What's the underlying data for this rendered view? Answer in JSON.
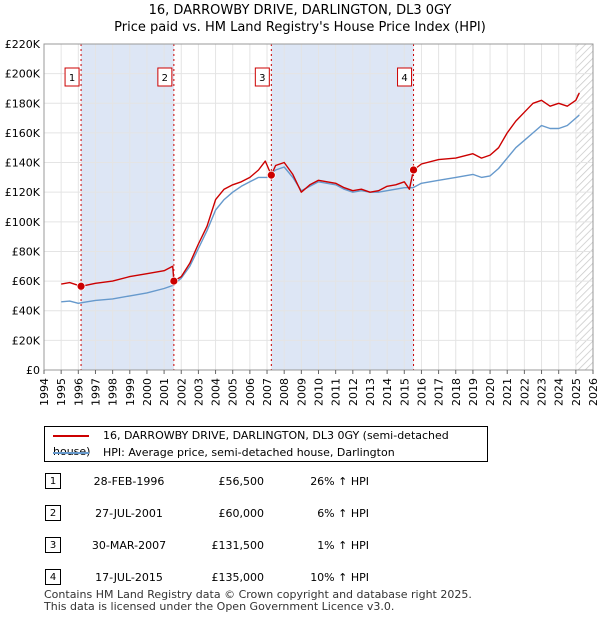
{
  "title_line1": "16, DARROWBY DRIVE, DARLINGTON, DL3 0GY",
  "title_line2": "Price paid vs. HM Land Registry's House Price Index (HPI)",
  "colors": {
    "property": "#cc0000",
    "hpi": "#6699cc",
    "shade": "#dde6f5",
    "marker": "#cc0000"
  },
  "chart_data": {
    "type": "line",
    "title": "16, DARROWBY DRIVE, DARLINGTON, DL3 0GY — Price paid vs. HM Land Registry's House Price Index (HPI)",
    "xlabel": "",
    "ylabel": "",
    "xlim": [
      1994,
      2026
    ],
    "ylim": [
      0,
      220000
    ],
    "x_ticks": [
      1994,
      1995,
      1996,
      1997,
      1998,
      1999,
      2000,
      2001,
      2002,
      2003,
      2004,
      2005,
      2006,
      2007,
      2008,
      2009,
      2010,
      2011,
      2012,
      2013,
      2014,
      2015,
      2016,
      2017,
      2018,
      2019,
      2020,
      2021,
      2022,
      2023,
      2024,
      2025,
      2026
    ],
    "y_ticks": [
      {
        "value": 0,
        "label": "£0"
      },
      {
        "value": 20000,
        "label": "£20K"
      },
      {
        "value": 40000,
        "label": "£40K"
      },
      {
        "value": 60000,
        "label": "£60K"
      },
      {
        "value": 80000,
        "label": "£80K"
      },
      {
        "value": 100000,
        "label": "£100K"
      },
      {
        "value": 120000,
        "label": "£120K"
      },
      {
        "value": 140000,
        "label": "£140K"
      },
      {
        "value": 160000,
        "label": "£160K"
      },
      {
        "value": 180000,
        "label": "£180K"
      },
      {
        "value": 200000,
        "label": "£200K"
      },
      {
        "value": 220000,
        "label": "£220K"
      }
    ],
    "shaded_ranges": [
      [
        1996.16,
        2001.57
      ],
      [
        2007.25,
        2015.54
      ]
    ],
    "hatched_from": 2025.0,
    "series": [
      {
        "name": "16, DARROWBY DRIVE, DARLINGTON, DL3 0GY (semi-detached house)",
        "x": [
          1995.0,
          1995.5,
          1996.16,
          1997,
          1998,
          1999,
          2000,
          2001,
          2001.5,
          2001.57,
          2002,
          2002.5,
          2003,
          2003.5,
          2004,
          2004.5,
          2005,
          2005.5,
          2006,
          2006.5,
          2006.9,
          2007.25,
          2007.5,
          2008,
          2008.5,
          2009,
          2009.5,
          2010,
          2010.5,
          2011,
          2011.5,
          2012,
          2012.5,
          2013,
          2013.5,
          2014,
          2014.5,
          2015,
          2015.3,
          2015.54,
          2016,
          2017,
          2018,
          2019,
          2019.5,
          2020,
          2020.5,
          2021,
          2021.5,
          2022,
          2022.5,
          2023,
          2023.5,
          2024,
          2024.5,
          2025,
          2025.2
        ],
        "y": [
          58000,
          59000,
          56500,
          58500,
          60000,
          63000,
          65000,
          67000,
          70000,
          60000,
          63000,
          72000,
          85000,
          97000,
          115000,
          122000,
          125000,
          127000,
          130000,
          135000,
          141000,
          131500,
          138000,
          140000,
          132000,
          120000,
          125000,
          128000,
          127000,
          126000,
          123000,
          121000,
          122000,
          120000,
          121000,
          124000,
          125000,
          127000,
          122000,
          135000,
          139000,
          142000,
          143000,
          146000,
          143000,
          145000,
          150000,
          160000,
          168000,
          174000,
          180000,
          182000,
          178000,
          180000,
          178000,
          182000,
          187000
        ]
      },
      {
        "name": "HPI: Average price, semi-detached house, Darlington",
        "x": [
          1995.0,
          1995.5,
          1996,
          1996.5,
          1997,
          1998,
          1999,
          2000,
          2001,
          2001.5,
          2002,
          2002.5,
          2003,
          2003.5,
          2004,
          2004.5,
          2005,
          2005.5,
          2006,
          2006.5,
          2007,
          2007.5,
          2008,
          2008.5,
          2009,
          2009.5,
          2010,
          2010.5,
          2011,
          2011.5,
          2012,
          2012.5,
          2013,
          2013.5,
          2014,
          2014.5,
          2015,
          2015.5,
          2016,
          2017,
          2018,
          2019,
          2019.5,
          2020,
          2020.5,
          2021,
          2021.5,
          2022,
          2022.5,
          2023,
          2023.5,
          2024,
          2024.5,
          2025,
          2025.2
        ],
        "y": [
          46000,
          46500,
          45000,
          46000,
          47000,
          48000,
          50000,
          52000,
          55000,
          57000,
          62000,
          70000,
          82000,
          94000,
          108000,
          115000,
          120000,
          124000,
          127000,
          130000,
          130000,
          135000,
          137000,
          130000,
          121000,
          124000,
          127000,
          126000,
          125000,
          122000,
          120000,
          121000,
          120000,
          120000,
          121000,
          122000,
          123000,
          123000,
          126000,
          128000,
          130000,
          132000,
          130000,
          131000,
          136000,
          143000,
          150000,
          155000,
          160000,
          165000,
          163000,
          163000,
          165000,
          170000,
          172000
        ]
      }
    ],
    "sale_markers": [
      {
        "label": "1",
        "x": 1996.16,
        "y": 56500
      },
      {
        "label": "2",
        "x": 2001.57,
        "y": 60000
      },
      {
        "label": "3",
        "x": 2007.25,
        "y": 131500
      },
      {
        "label": "4",
        "x": 2015.54,
        "y": 135000
      }
    ]
  },
  "legend": {
    "property_label": "16, DARROWBY DRIVE, DARLINGTON, DL3 0GY (semi-detached house)",
    "hpi_label": "HPI: Average price, semi-detached house, Darlington"
  },
  "sales": [
    {
      "num": "1",
      "date": "28-FEB-1996",
      "price": "£56,500",
      "hpi": "26% ↑ HPI"
    },
    {
      "num": "2",
      "date": "27-JUL-2001",
      "price": "£60,000",
      "hpi": "6% ↑ HPI"
    },
    {
      "num": "3",
      "date": "30-MAR-2007",
      "price": "£131,500",
      "hpi": "1% ↑ HPI"
    },
    {
      "num": "4",
      "date": "17-JUL-2015",
      "price": "£135,000",
      "hpi": "10% ↑ HPI"
    }
  ],
  "footer": {
    "line1": "Contains HM Land Registry data © Crown copyright and database right 2025.",
    "line2": "This data is licensed under the Open Government Licence v3.0."
  }
}
